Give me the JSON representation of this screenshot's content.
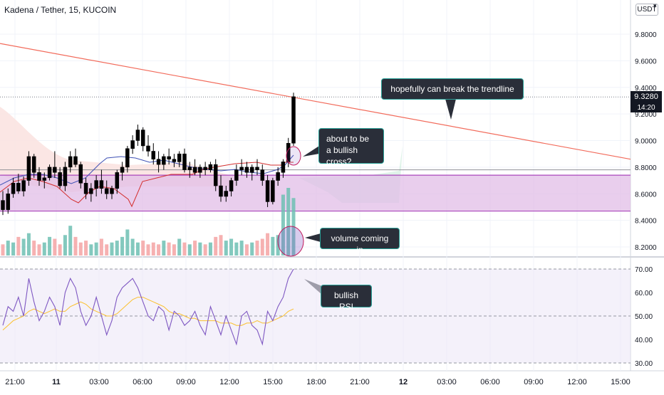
{
  "header": {
    "symbol_title": "Kadena / Tether, 15, KUCOIN",
    "currency_badge": "USDT"
  },
  "price_axis": {
    "ticks": [
      "9.8000",
      "9.6000",
      "9.4000",
      "9.2000",
      "9.0000",
      "8.8000",
      "8.6000",
      "8.4000",
      "8.2000"
    ],
    "tick_values": [
      9.8,
      9.6,
      9.4,
      9.2,
      9.0,
      8.8,
      8.6,
      8.4,
      8.2
    ],
    "last_price": "9.3280",
    "countdown": "14:20"
  },
  "rsi_axis": {
    "ticks": [
      "70.00",
      "60.00",
      "50.00",
      "40.00",
      "30.00"
    ],
    "tick_values": [
      70,
      60,
      50,
      40,
      30
    ]
  },
  "time_axis": {
    "ticks": [
      "21:00",
      "11",
      "03:00",
      "06:00",
      "09:00",
      "12:00",
      "15:00",
      "18:00",
      "21:00",
      "12",
      "03:00",
      "06:00",
      "09:00",
      "12:00",
      "15:00"
    ],
    "bold": [
      false,
      true,
      false,
      false,
      false,
      false,
      false,
      false,
      false,
      true,
      false,
      false,
      false,
      false,
      false
    ]
  },
  "annotations": {
    "trendline": "hopefully can break the trendline",
    "cross": "about to be a bullish cross?",
    "volume": "volume coming in",
    "rsi": "bullish RSI"
  },
  "colors": {
    "up": "#000000",
    "down": "#000000",
    "vol_up": "#6dbfb3",
    "vol_down": "#f4a3a3",
    "trendline": "#f26b5b",
    "support_zone": "#e1bee7",
    "support_border": "#ab47bc",
    "rsi_line": "#7e57c2",
    "rsi_ma": "#fbc02d",
    "rsi_band": "#ede7f6",
    "callout_bg": "#2a2e39",
    "callout_border": "#2aa198"
  },
  "chart_data": {
    "type": "candlestick",
    "title": "Kadena / Tether, 15, KUCOIN",
    "y_range": [
      8.12,
      10.0
    ],
    "last_price": 9.328,
    "support_zone": [
      8.47,
      8.74
    ],
    "trendline": {
      "start": [
        "10 20:00",
        9.73
      ],
      "end": [
        "12 15:30",
        8.86
      ]
    },
    "candles_ohlc": [
      [
        8.55,
        8.62,
        8.44,
        8.48
      ],
      [
        8.48,
        8.64,
        8.45,
        8.6
      ],
      [
        8.6,
        8.72,
        8.57,
        8.68
      ],
      [
        8.68,
        8.75,
        8.6,
        8.62
      ],
      [
        8.62,
        8.73,
        8.58,
        8.7
      ],
      [
        8.7,
        8.92,
        8.66,
        8.88
      ],
      [
        8.88,
        8.9,
        8.72,
        8.76
      ],
      [
        8.76,
        8.8,
        8.66,
        8.7
      ],
      [
        8.7,
        8.76,
        8.64,
        8.72
      ],
      [
        8.72,
        8.82,
        8.7,
        8.8
      ],
      [
        8.8,
        8.92,
        8.72,
        8.76
      ],
      [
        8.76,
        8.8,
        8.64,
        8.66
      ],
      [
        8.66,
        8.84,
        8.62,
        8.8
      ],
      [
        8.8,
        8.92,
        8.76,
        8.88
      ],
      [
        8.88,
        8.94,
        8.8,
        8.82
      ],
      [
        8.82,
        8.84,
        8.64,
        8.68
      ],
      [
        8.68,
        8.72,
        8.56,
        8.6
      ],
      [
        8.6,
        8.68,
        8.54,
        8.64
      ],
      [
        8.64,
        8.74,
        8.58,
        8.7
      ],
      [
        8.7,
        8.78,
        8.6,
        8.64
      ],
      [
        8.64,
        8.7,
        8.56,
        8.6
      ],
      [
        8.6,
        8.66,
        8.56,
        8.64
      ],
      [
        8.64,
        8.78,
        8.6,
        8.76
      ],
      [
        8.76,
        8.84,
        8.7,
        8.8
      ],
      [
        8.8,
        8.96,
        8.76,
        8.94
      ],
      [
        8.94,
        9.04,
        8.9,
        9.0
      ],
      [
        9.0,
        9.12,
        8.96,
        9.08
      ],
      [
        9.08,
        9.1,
        8.92,
        8.96
      ],
      [
        8.96,
        9.04,
        8.88,
        8.92
      ],
      [
        8.92,
        8.98,
        8.82,
        8.86
      ],
      [
        8.86,
        8.92,
        8.76,
        8.82
      ],
      [
        8.82,
        8.9,
        8.78,
        8.88
      ],
      [
        8.88,
        8.94,
        8.82,
        8.86
      ],
      [
        8.86,
        8.9,
        8.8,
        8.84
      ],
      [
        8.84,
        8.92,
        8.8,
        8.9
      ],
      [
        8.9,
        8.94,
        8.76,
        8.78
      ],
      [
        8.78,
        8.84,
        8.72,
        8.8
      ],
      [
        8.8,
        8.86,
        8.74,
        8.76
      ],
      [
        8.76,
        8.82,
        8.72,
        8.8
      ],
      [
        8.8,
        8.84,
        8.74,
        8.78
      ],
      [
        8.78,
        8.84,
        8.76,
        8.82
      ],
      [
        8.82,
        8.86,
        8.62,
        8.66
      ],
      [
        8.66,
        8.74,
        8.54,
        8.58
      ],
      [
        8.58,
        8.66,
        8.54,
        8.62
      ],
      [
        8.62,
        8.72,
        8.58,
        8.7
      ],
      [
        8.7,
        8.82,
        8.66,
        8.78
      ],
      [
        8.78,
        8.86,
        8.74,
        8.8
      ],
      [
        8.8,
        8.84,
        8.72,
        8.76
      ],
      [
        8.76,
        8.82,
        8.7,
        8.8
      ],
      [
        8.8,
        8.86,
        8.74,
        8.78
      ],
      [
        8.78,
        8.82,
        8.66,
        8.7
      ],
      [
        8.7,
        8.74,
        8.5,
        8.54
      ],
      [
        8.54,
        8.72,
        8.52,
        8.7
      ],
      [
        8.7,
        8.8,
        8.66,
        8.76
      ],
      [
        8.76,
        8.86,
        8.72,
        8.84
      ],
      [
        8.84,
        9.02,
        8.8,
        8.98
      ],
      [
        8.98,
        9.36,
        8.96,
        9.33
      ]
    ],
    "volume_relative": [
      0.3,
      0.4,
      0.35,
      0.5,
      0.45,
      0.6,
      0.4,
      0.3,
      0.35,
      0.5,
      0.45,
      0.3,
      0.55,
      0.8,
      0.5,
      0.35,
      0.4,
      0.3,
      0.35,
      0.45,
      0.3,
      0.35,
      0.4,
      0.5,
      0.7,
      0.45,
      0.35,
      0.4,
      0.3,
      0.35,
      0.3,
      0.4,
      0.35,
      0.3,
      0.45,
      0.35,
      0.3,
      0.4,
      0.35,
      0.3,
      0.35,
      0.5,
      0.55,
      0.4,
      0.45,
      0.35,
      0.4,
      0.3,
      0.35,
      0.4,
      0.45,
      0.6,
      0.5,
      0.55,
      0.9,
      1.0,
      0.85
    ],
    "rsi": [
      46,
      54,
      52,
      58,
      50,
      66,
      56,
      48,
      52,
      58,
      54,
      46,
      60,
      66,
      62,
      52,
      46,
      50,
      58,
      50,
      42,
      48,
      58,
      62,
      64,
      66,
      62,
      56,
      50,
      48,
      54,
      52,
      44,
      52,
      50,
      46,
      48,
      52,
      46,
      42,
      54,
      48,
      42,
      50,
      44,
      38,
      50,
      52,
      46,
      44,
      38,
      52,
      48,
      54,
      58,
      66,
      70
    ],
    "rsi_ma": [
      44,
      46,
      48,
      49,
      50,
      52,
      53,
      52,
      51,
      52,
      53,
      52,
      52,
      54,
      55,
      56,
      55,
      53,
      52,
      51,
      50,
      50,
      51,
      53,
      55,
      57,
      58,
      58,
      57,
      56,
      55,
      54,
      52,
      51,
      51,
      50,
      49,
      49,
      48,
      48,
      48,
      48,
      47,
      47,
      47,
      46,
      46,
      47,
      47,
      48,
      47,
      47,
      48,
      49,
      50,
      52,
      53
    ],
    "rsi_range": [
      27,
      73
    ],
    "rsi_levels": [
      70,
      50,
      30
    ]
  }
}
